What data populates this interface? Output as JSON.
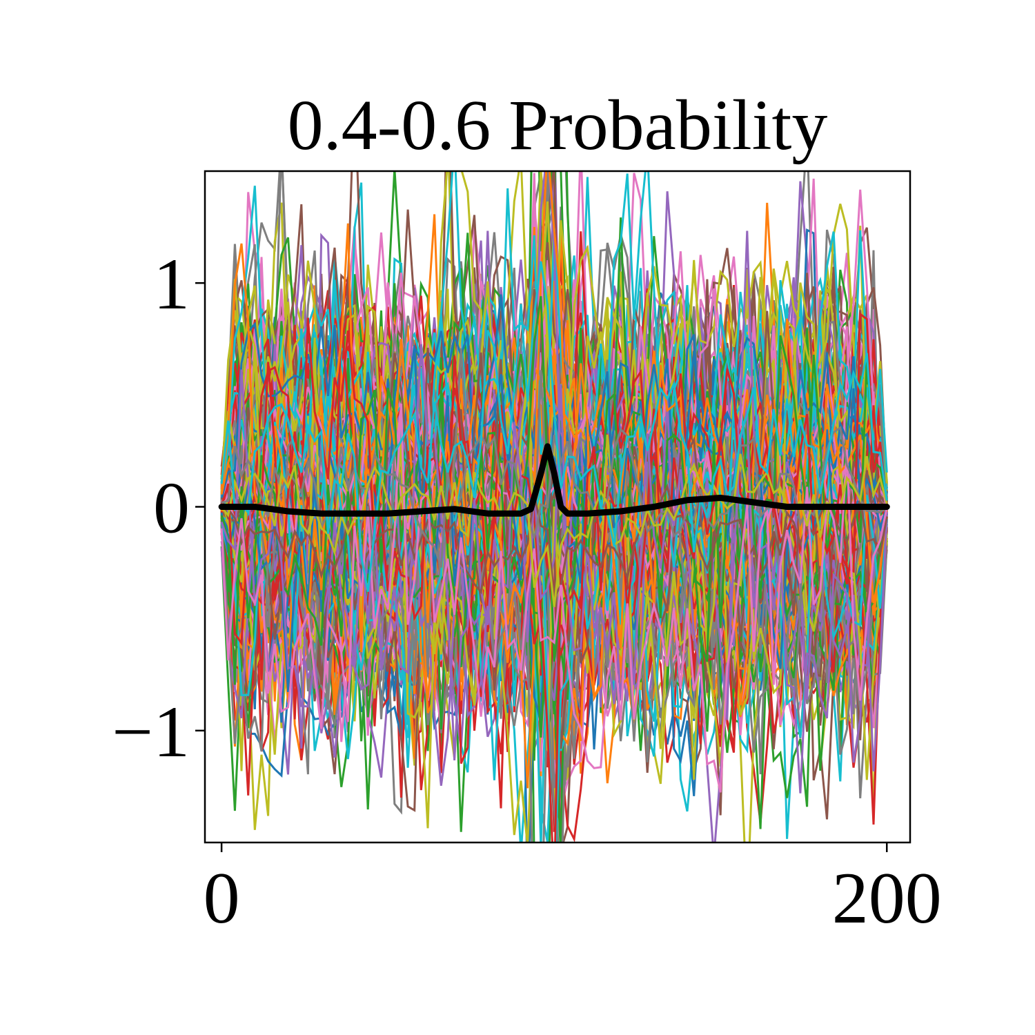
{
  "chart_data": {
    "type": "line",
    "title": "0.4-0.6 Probability",
    "xlabel": "",
    "ylabel": "",
    "xlim": [
      -5,
      207
    ],
    "ylim": [
      -1.5,
      1.5
    ],
    "x_ticks": [
      {
        "value": 0,
        "label": "0"
      },
      {
        "value": 200,
        "label": "200"
      }
    ],
    "y_ticks": [
      {
        "value": 1,
        "label": "1"
      },
      {
        "value": 0,
        "label": "0"
      },
      {
        "value": -1,
        "label": "−1"
      }
    ],
    "grid": false,
    "legend": "none",
    "palette": [
      "#1f77b4",
      "#ff7f0e",
      "#2ca02c",
      "#d62728",
      "#9467bd",
      "#8c564b",
      "#e377c2",
      "#7f7f7f",
      "#bcbd22",
      "#17becf"
    ],
    "background_series": {
      "description_count": 300,
      "x_range": [
        0,
        200
      ],
      "spread": 0.45
    },
    "mean_series": {
      "color": "#000000",
      "x": [
        0,
        10,
        20,
        30,
        40,
        50,
        60,
        70,
        80,
        90,
        93,
        96,
        98,
        100,
        102,
        104,
        107,
        110,
        120,
        130,
        140,
        150,
        160,
        170,
        180,
        190,
        200
      ],
      "values": [
        0.0,
        0.0,
        -0.02,
        -0.03,
        -0.03,
        -0.03,
        -0.02,
        -0.01,
        -0.03,
        -0.03,
        -0.01,
        0.15,
        0.27,
        0.15,
        0.0,
        -0.03,
        -0.03,
        -0.03,
        -0.02,
        0.0,
        0.03,
        0.04,
        0.02,
        0.0,
        0.0,
        0.0,
        0.0
      ]
    }
  }
}
